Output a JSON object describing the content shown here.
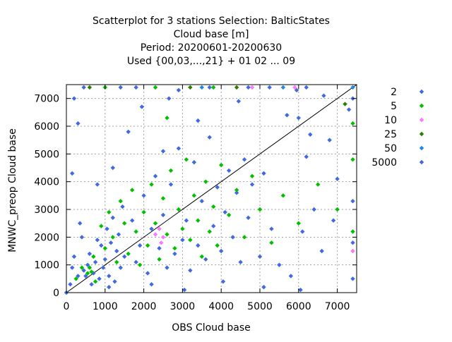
{
  "chart_data": {
    "type": "scatter",
    "title": [
      "Scatterplot for    3 stations Selection: BalticStates",
      "Cloud base [m]",
      "Period: 20200601-20200630",
      "Used {00,03,...,21} + 01 02 ... 09"
    ],
    "xlabel": "OBS Cloud base",
    "ylabel": "MNWC_preop Cloud base",
    "xlim": [
      0,
      7500
    ],
    "ylim": [
      0,
      7500
    ],
    "xticks": [
      0,
      1000,
      2000,
      3000,
      4000,
      5000,
      6000,
      7000
    ],
    "yticks": [
      0,
      1000,
      2000,
      3000,
      4000,
      5000,
      6000,
      7000
    ],
    "grid": true,
    "legend_position": "right",
    "diagonal_line": true,
    "series": [
      {
        "name": "2",
        "color": "#4169e1",
        "points": [
          [
            0,
            0
          ],
          [
            100,
            300
          ],
          [
            150,
            900
          ],
          [
            200,
            1300
          ],
          [
            300,
            600
          ],
          [
            350,
            2500
          ],
          [
            400,
            2000
          ],
          [
            450,
            800
          ],
          [
            500,
            600
          ],
          [
            550,
            1000
          ],
          [
            600,
            1400
          ],
          [
            650,
            300
          ],
          [
            700,
            700
          ],
          [
            750,
            1100
          ],
          [
            800,
            1900
          ],
          [
            850,
            500
          ],
          [
            900,
            1700
          ],
          [
            950,
            900
          ],
          [
            1000,
            1200
          ],
          [
            1050,
            2300
          ],
          [
            1100,
            600
          ],
          [
            1150,
            1800
          ],
          [
            1200,
            2700
          ],
          [
            1250,
            400
          ],
          [
            1300,
            1500
          ],
          [
            1350,
            2100
          ],
          [
            1400,
            900
          ],
          [
            1450,
            3100
          ],
          [
            1500,
            1300
          ],
          [
            1600,
            5800
          ],
          [
            1700,
            2600
          ],
          [
            1800,
            1100
          ],
          [
            1900,
            1700
          ],
          [
            2000,
            3500
          ],
          [
            2100,
            700
          ],
          [
            2200,
            2300
          ],
          [
            2300,
            4200
          ],
          [
            2400,
            1600
          ],
          [
            2500,
            2800
          ],
          [
            2600,
            900
          ],
          [
            2700,
            3900
          ],
          [
            2800,
            1400
          ],
          [
            2900,
            5200
          ],
          [
            3000,
            1900
          ],
          [
            3100,
            2600
          ],
          [
            3200,
            800
          ],
          [
            3300,
            4700
          ],
          [
            3400,
            1700
          ],
          [
            3500,
            3300
          ],
          [
            3600,
            1200
          ],
          [
            3700,
            5600
          ],
          [
            3800,
            2400
          ],
          [
            3900,
            3800
          ],
          [
            4000,
            1500
          ],
          [
            4100,
            2900
          ],
          [
            4200,
            4400
          ],
          [
            4300,
            2000
          ],
          [
            4400,
            3600
          ],
          [
            4500,
            1100
          ],
          [
            4600,
            4800
          ],
          [
            4700,
            2700
          ],
          [
            4800,
            3900
          ],
          [
            5000,
            1300
          ],
          [
            5100,
            4300
          ],
          [
            5300,
            2300
          ],
          [
            5500,
            1000
          ],
          [
            5700,
            6400
          ],
          [
            5800,
            600
          ],
          [
            6000,
            6300
          ],
          [
            6100,
            2200
          ],
          [
            6200,
            4900
          ],
          [
            6400,
            3000
          ],
          [
            6600,
            1500
          ],
          [
            6800,
            5500
          ],
          [
            7000,
            4100
          ],
          [
            7300,
            6600
          ],
          [
            7400,
            7000
          ],
          [
            7400,
            3300
          ],
          [
            7400,
            1800
          ],
          [
            7400,
            500
          ],
          [
            200,
            7000
          ],
          [
            450,
            7400
          ],
          [
            1400,
            7400
          ],
          [
            1950,
            6700
          ],
          [
            2650,
            7000
          ],
          [
            3700,
            7400
          ],
          [
            4450,
            6900
          ],
          [
            5250,
            7400
          ],
          [
            5950,
            7300
          ],
          [
            6650,
            7100
          ],
          [
            6900,
            2600
          ],
          [
            6300,
            5700
          ],
          [
            300,
            6100
          ],
          [
            150,
            4300
          ],
          [
            800,
            3900
          ],
          [
            1200,
            4500
          ],
          [
            2500,
            5100
          ],
          [
            3400,
            6200
          ],
          [
            1100,
            200
          ],
          [
            2200,
            300
          ],
          [
            3050,
            100
          ],
          [
            4050,
            400
          ],
          [
            5100,
            200
          ],
          [
            6050,
            100
          ]
        ]
      },
      {
        "name": "5",
        "color": "#00c000",
        "points": [
          [
            250,
            500
          ],
          [
            400,
            900
          ],
          [
            550,
            700
          ],
          [
            600,
            900
          ],
          [
            650,
            750
          ],
          [
            700,
            1300
          ],
          [
            750,
            400
          ],
          [
            900,
            2400
          ],
          [
            1000,
            1600
          ],
          [
            1100,
            2900
          ],
          [
            1200,
            2000
          ],
          [
            1300,
            1100
          ],
          [
            1400,
            3300
          ],
          [
            1500,
            2500
          ],
          [
            1600,
            1400
          ],
          [
            1700,
            3700
          ],
          [
            1800,
            2200
          ],
          [
            1900,
            1000
          ],
          [
            2000,
            2900
          ],
          [
            2100,
            1700
          ],
          [
            2200,
            3900
          ],
          [
            2300,
            2500
          ],
          [
            2400,
            1200
          ],
          [
            2500,
            3400
          ],
          [
            2600,
            2100
          ],
          [
            2700,
            4400
          ],
          [
            2800,
            1600
          ],
          [
            2900,
            3000
          ],
          [
            3000,
            2300
          ],
          [
            3100,
            4800
          ],
          [
            3200,
            1900
          ],
          [
            3300,
            3500
          ],
          [
            3400,
            2600
          ],
          [
            3500,
            1300
          ],
          [
            3600,
            4000
          ],
          [
            3700,
            2200
          ],
          [
            3800,
            3100
          ],
          [
            3900,
            1700
          ],
          [
            4000,
            4600
          ],
          [
            4200,
            2800
          ],
          [
            4400,
            3700
          ],
          [
            4600,
            2000
          ],
          [
            4800,
            4200
          ],
          [
            5000,
            3000
          ],
          [
            5300,
            1800
          ],
          [
            5600,
            3500
          ],
          [
            6000,
            2500
          ],
          [
            6500,
            3900
          ],
          [
            7000,
            3000
          ],
          [
            7400,
            2200
          ],
          [
            7400,
            4800
          ],
          [
            7400,
            6100
          ],
          [
            2300,
            7400
          ],
          [
            1000,
            7400
          ],
          [
            3800,
            7400
          ],
          [
            2600,
            6300
          ]
        ]
      },
      {
        "name": "10",
        "color": "#ff77ff",
        "points": [
          [
            2300,
            2100
          ],
          [
            2400,
            2300
          ],
          [
            2450,
            1800
          ],
          [
            2500,
            2000
          ],
          [
            4800,
            7400
          ],
          [
            5900,
            7400
          ],
          [
            7400,
            1500
          ]
        ]
      },
      {
        "name": "25",
        "color": "#2e7d00",
        "points": [
          [
            3200,
            7400
          ],
          [
            4400,
            7400
          ],
          [
            7200,
            6800
          ],
          [
            600,
            7400
          ]
        ]
      },
      {
        "name": "50",
        "color": "#1e88e5",
        "points": [
          [
            3500,
            7400
          ],
          [
            5600,
            7400
          ],
          [
            7400,
            7400
          ]
        ]
      },
      {
        "name": "5000",
        "color": "#4169e1",
        "points": [
          [
            1800,
            7400
          ],
          [
            2900,
            7300
          ],
          [
            6200,
            7400
          ],
          [
            4700,
            7400
          ]
        ]
      }
    ]
  }
}
